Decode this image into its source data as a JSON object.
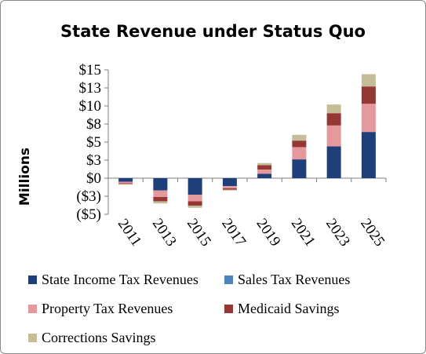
{
  "chart_data": {
    "type": "bar",
    "stacked": true,
    "title": "State Revenue under Status Quo",
    "ylabel": "Millions",
    "xlabel": "",
    "ylim": [
      -5,
      15
    ],
    "yticks": [
      {
        "value": 15,
        "label": "$15"
      },
      {
        "value": 12.5,
        "label": "$13"
      },
      {
        "value": 10,
        "label": "$10"
      },
      {
        "value": 7.5,
        "label": "$8"
      },
      {
        "value": 5,
        "label": "$5"
      },
      {
        "value": 2.5,
        "label": "$3"
      },
      {
        "value": 0,
        "label": "$0"
      },
      {
        "value": -2.5,
        "label": "($3)"
      },
      {
        "value": -5,
        "label": "($5)"
      }
    ],
    "categories": [
      "2011",
      "2013",
      "2015",
      "2017",
      "2019",
      "2021",
      "2023",
      "2025"
    ],
    "series": [
      {
        "name": "State Income Tax Revenues",
        "color": "#1f3f7a",
        "values": [
          -0.5,
          -1.7,
          -2.3,
          -1.1,
          0.6,
          2.6,
          4.4,
          6.4
        ]
      },
      {
        "name": "Sales Tax Revenues",
        "color": "#4f81bd",
        "values": [
          0,
          0,
          0,
          0,
          0,
          0,
          0,
          0
        ]
      },
      {
        "name": "Property Tax Revenues",
        "color": "#e6999c",
        "values": [
          -0.2,
          -0.9,
          -0.9,
          -0.3,
          0.6,
          1.7,
          2.9,
          3.9
        ]
      },
      {
        "name": "Medicaid Savings",
        "color": "#953735",
        "values": [
          -0.1,
          -0.6,
          -0.6,
          -0.2,
          0.6,
          0.9,
          1.7,
          2.4
        ]
      },
      {
        "name": "Corrections Savings",
        "color": "#c4bd97",
        "values": [
          -0.1,
          -0.3,
          -0.3,
          -0.1,
          0.3,
          0.8,
          1.2,
          1.7
        ]
      }
    ],
    "legend_position": "bottom",
    "grid": false
  }
}
